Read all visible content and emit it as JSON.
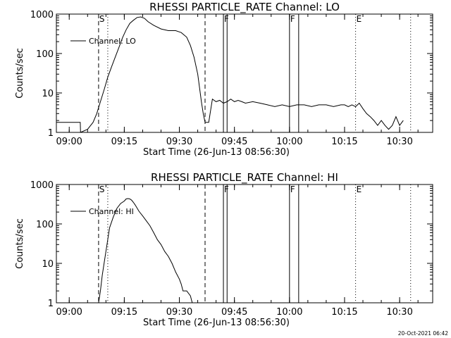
{
  "timestamp": "20-Oct-2021 06:42",
  "time_ticks": [
    "09:00",
    "09:15",
    "09:30",
    "09:45",
    "10:00",
    "10:15",
    "10:30"
  ],
  "y_ticks": [
    "1",
    "10",
    "100",
    "1000"
  ],
  "marker_labels": [
    "S",
    "F",
    "F",
    "E"
  ],
  "chart_data": [
    {
      "type": "line",
      "title": "RHESSI PARTICLE_RATE Channel: LO",
      "xlabel": "Start Time (26-Jun-13 08:56:30)",
      "ylabel": "Counts/sec",
      "yscale": "log",
      "ylim": [
        1,
        1000
      ],
      "xlim": [
        "08:56:30",
        "10:39:00"
      ],
      "legend": "Channel: LO",
      "legend_position": "top-left",
      "series": [
        {
          "name": "Channel: LO",
          "x": [
            "08:56:30",
            "09:03:00",
            "09:03:05",
            "09:05:00",
            "09:06:30",
            "09:07:30",
            "09:08:30",
            "09:09:30",
            "09:10:30",
            "09:11:30",
            "09:12:30",
            "09:13:30",
            "09:14:30",
            "09:15:30",
            "09:16:30",
            "09:17:30",
            "09:18:30",
            "09:19:30",
            "09:20:30",
            "09:21:30",
            "09:23:00",
            "09:25:00",
            "09:27:00",
            "09:29:00",
            "09:30:30",
            "09:32:00",
            "09:33:00",
            "09:34:00",
            "09:35:00",
            "09:36:00",
            "09:36:30",
            "09:37:00",
            "09:38:00",
            "09:39:00",
            "09:40:00",
            "09:41:00",
            "09:42:00",
            "09:43:00",
            "09:44:00",
            "09:45:00",
            "09:46:00",
            "09:47:00",
            "09:48:00",
            "09:50:00",
            "09:52:00",
            "09:54:00",
            "09:56:00",
            "09:58:00",
            "10:00:00",
            "10:02:00",
            "10:04:00",
            "10:06:00",
            "10:08:00",
            "10:10:00",
            "10:12:00",
            "10:14:00",
            "10:15:00",
            "10:16:00",
            "10:17:00",
            "10:18:00",
            "10:19:00",
            "10:20:00",
            "10:21:00",
            "10:22:00",
            "10:23:00",
            "10:24:00",
            "10:25:00",
            "10:26:00",
            "10:27:00",
            "10:28:00",
            "10:29:00",
            "10:30:00",
            "10:31:00"
          ],
          "values": [
            1.8,
            1.8,
            1,
            1.2,
            1.8,
            3,
            6,
            12,
            25,
            45,
            80,
            140,
            250,
            400,
            580,
            700,
            820,
            850,
            780,
            640,
            520,
            420,
            380,
            380,
            340,
            260,
            160,
            80,
            30,
            6,
            3,
            1.8,
            1.8,
            7,
            6,
            6.5,
            5.5,
            6,
            7,
            6,
            6.5,
            6,
            5.5,
            6,
            5.5,
            5,
            4.5,
            5,
            4.5,
            5,
            5,
            4.5,
            5,
            5,
            4.5,
            5,
            5,
            4.5,
            5,
            4.5,
            5.5,
            4,
            3,
            2.5,
            2,
            1.5,
            2,
            1.5,
            1.2,
            1.5,
            2.5,
            1.5,
            2
          ]
        }
      ],
      "markers": [
        {
          "label": "S",
          "time": "09:08:00",
          "style": "dashed"
        },
        {
          "label": "",
          "time": "09:10:30",
          "style": "dotted"
        },
        {
          "label": "",
          "time": "09:37:00",
          "style": "dashed"
        },
        {
          "label": "F",
          "time": "09:42:00",
          "style": "solid"
        },
        {
          "label": "",
          "time": "09:43:00",
          "style": "solid"
        },
        {
          "label": "F",
          "time": "10:00:00",
          "style": "solid"
        },
        {
          "label": "",
          "time": "10:02:30",
          "style": "solid"
        },
        {
          "label": "E",
          "time": "10:18:00",
          "style": "dotted"
        },
        {
          "label": "",
          "time": "10:33:00",
          "style": "dotted"
        }
      ]
    },
    {
      "type": "line",
      "title": "RHESSI PARTICLE_RATE Channel: HI",
      "xlabel": "Start Time (26-Jun-13 08:56:30)",
      "ylabel": "Counts/sec",
      "yscale": "log",
      "ylim": [
        1,
        1000
      ],
      "xlim": [
        "08:56:30",
        "10:39:00"
      ],
      "legend": "Channel: HI",
      "legend_position": "top-left",
      "series": [
        {
          "name": "Channel: HI",
          "x": [
            "09:08:00",
            "09:08:30",
            "09:09:00",
            "09:09:30",
            "09:10:00",
            "09:10:30",
            "09:11:00",
            "09:12:00",
            "09:13:00",
            "09:14:00",
            "09:15:00",
            "09:15:30",
            "09:16:00",
            "09:16:30",
            "09:17:00",
            "09:17:30",
            "09:18:00",
            "09:19:00",
            "09:20:00",
            "09:21:00",
            "09:22:00",
            "09:23:00",
            "09:24:00",
            "09:25:00",
            "09:26:00",
            "09:27:00",
            "09:28:00",
            "09:29:00",
            "09:30:00",
            "09:30:30",
            "09:31:00",
            "09:32:00",
            "09:33:00",
            "09:33:30"
          ],
          "values": [
            1,
            2,
            5,
            10,
            20,
            40,
            80,
            150,
            250,
            330,
            380,
            430,
            440,
            430,
            400,
            350,
            300,
            210,
            160,
            120,
            90,
            60,
            40,
            30,
            20,
            15,
            10,
            6,
            4,
            3,
            2,
            2,
            1.5,
            1
          ]
        }
      ],
      "markers": [
        {
          "label": "S",
          "time": "09:08:00",
          "style": "dashed"
        },
        {
          "label": "",
          "time": "09:10:30",
          "style": "dotted"
        },
        {
          "label": "",
          "time": "09:37:00",
          "style": "dashed"
        },
        {
          "label": "F",
          "time": "09:42:00",
          "style": "solid"
        },
        {
          "label": "",
          "time": "09:43:00",
          "style": "solid"
        },
        {
          "label": "F",
          "time": "10:00:00",
          "style": "solid"
        },
        {
          "label": "",
          "time": "10:02:30",
          "style": "solid"
        },
        {
          "label": "E",
          "time": "10:18:00",
          "style": "dotted"
        },
        {
          "label": "",
          "time": "10:33:00",
          "style": "dotted"
        }
      ]
    }
  ]
}
